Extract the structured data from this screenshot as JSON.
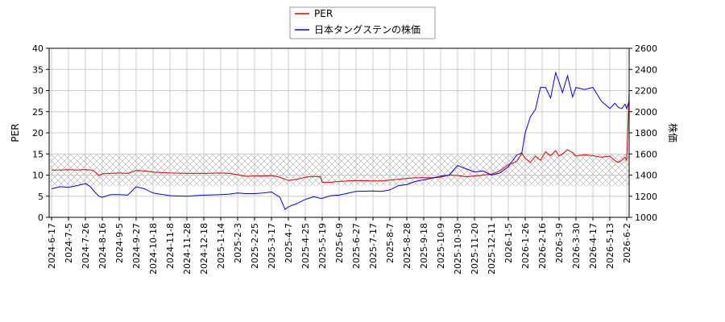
{
  "chart_data": {
    "type": "line",
    "title": "",
    "xlabel": "",
    "ylabel": "PER",
    "y2label": "株価",
    "ylim": [
      0,
      40
    ],
    "y2lim": [
      1000,
      2600
    ],
    "yticks": [
      0,
      5,
      10,
      15,
      20,
      25,
      30,
      35,
      40
    ],
    "y2ticks": [
      1000,
      1200,
      1400,
      1600,
      1800,
      2000,
      2200,
      2400,
      2600
    ],
    "grid": true,
    "legend_position": "top-center",
    "band": {
      "y_from": 7.5,
      "y_to": 15,
      "pattern": "crosshatch"
    },
    "x_ticks": [
      "2024-6-17",
      "2024-7-5",
      "2024-7-26",
      "2024-8-16",
      "2024-9-5",
      "2024-9-27",
      "2024-10-18",
      "2024-11-8",
      "2024-11-28",
      "2024-12-18",
      "2025-1-14",
      "2025-2-3",
      "2025-2-25",
      "2025-3-17",
      "2025-4-7",
      "2025-4-25",
      "2025-5-19",
      "2025-6-9",
      "2025-6-27",
      "2025-7-17",
      "2025-8-7",
      "2025-8-28",
      "2025-9-18",
      "2025-10-9",
      "2025-10-30",
      "2025-11-20",
      "2025-12-11",
      "2026-1-5",
      "2026-1-26",
      "2026-2-16",
      "2026-3-9",
      "2026-3-30",
      "2026-4-17",
      "2026-5-13",
      "2026-6-2"
    ],
    "series": [
      {
        "name": "PER",
        "color": "#dd0000",
        "axis": "left",
        "x": [
          0,
          0.5,
          1,
          1.5,
          2,
          2.3,
          2.5,
          2.8,
          3,
          3.5,
          4,
          4.5,
          5,
          5.5,
          6,
          7,
          8,
          9,
          10,
          10.5,
          11,
          11.5,
          12,
          12.5,
          13,
          13.5,
          13.8,
          14,
          14.5,
          15,
          15.5,
          15.9,
          16,
          16.5,
          17,
          18,
          19,
          19.5,
          20,
          20.5,
          21,
          21.5,
          22,
          22.5,
          23,
          23.5,
          24,
          24.5,
          25,
          25.5,
          26,
          26.5,
          27,
          27.5,
          27.8,
          28,
          28.3,
          28.6,
          28.9,
          29.2,
          29.5,
          29.8,
          30,
          30.2,
          30.5,
          30.8,
          31,
          31.5,
          32,
          32.5,
          33,
          33.3,
          33.5,
          33.7,
          33.9,
          34,
          34.2,
          34.3,
          34.5,
          34.7,
          35,
          35.2,
          35.5
        ],
        "y": [
          11.2,
          11.2,
          11.3,
          11.2,
          11.3,
          11.2,
          11.0,
          9.9,
          10.3,
          10.4,
          10.5,
          10.4,
          11.1,
          11.0,
          10.7,
          10.5,
          10.4,
          10.4,
          10.5,
          10.4,
          10.1,
          9.7,
          9.8,
          9.8,
          9.9,
          9.5,
          9.0,
          8.7,
          9.0,
          9.5,
          9.7,
          9.6,
          8.3,
          8.3,
          8.5,
          8.7,
          8.6,
          8.6,
          8.8,
          9.0,
          9.2,
          9.4,
          9.4,
          9.4,
          9.5,
          10.0,
          9.9,
          9.6,
          9.8,
          10.0,
          10.2,
          11.0,
          12.5,
          13.2,
          15.2,
          14.0,
          13.0,
          14.5,
          13.5,
          15.5,
          14.6,
          15.8,
          14.5,
          15.0,
          16.0,
          15.3,
          14.5,
          14.8,
          14.6,
          14.2,
          14.5,
          13.4,
          13.0,
          13.5,
          14.2,
          13.5,
          36.0,
          34.0,
          33.5,
          39.0,
          15.0,
          14.0,
          12.8
        ]
      },
      {
        "name": "日本タングステンの株価",
        "color": "#0000dd",
        "axis": "right",
        "x": [
          0,
          0.5,
          1,
          1.5,
          2,
          2.3,
          2.5,
          2.8,
          3,
          3.5,
          4,
          4.5,
          5,
          5.5,
          6,
          7,
          8,
          9,
          10,
          10.5,
          11,
          11.5,
          12,
          12.5,
          13,
          13.5,
          13.8,
          14,
          14.5,
          15,
          15.5,
          15.9,
          16,
          16.5,
          17,
          18,
          19,
          19.5,
          20,
          20.5,
          21,
          21.5,
          22,
          22.5,
          23,
          23.5,
          24,
          24.5,
          25,
          25.5,
          26,
          26.5,
          27,
          27.5,
          27.8,
          28,
          28.3,
          28.6,
          28.9,
          29.2,
          29.5,
          29.8,
          30,
          30.2,
          30.5,
          30.8,
          31,
          31.5,
          32,
          32.5,
          33,
          33.3,
          33.5,
          33.7,
          33.9,
          34,
          34.2,
          34.3,
          34.5,
          34.7,
          35,
          35.2,
          35.5
        ],
        "y": [
          1270,
          1290,
          1285,
          1300,
          1320,
          1290,
          1250,
          1200,
          1190,
          1215,
          1215,
          1210,
          1290,
          1270,
          1230,
          1205,
          1200,
          1210,
          1215,
          1220,
          1230,
          1225,
          1225,
          1230,
          1240,
          1190,
          1075,
          1100,
          1130,
          1170,
          1195,
          1180,
          1180,
          1205,
          1210,
          1245,
          1250,
          1245,
          1260,
          1300,
          1310,
          1340,
          1355,
          1370,
          1390,
          1400,
          1490,
          1460,
          1430,
          1440,
          1400,
          1420,
          1480,
          1590,
          1610,
          1800,
          1950,
          2020,
          2230,
          2230,
          2130,
          2370,
          2280,
          2180,
          2340,
          2140,
          2230,
          2210,
          2230,
          2100,
          2030,
          2080,
          2040,
          2030,
          2070,
          2030,
          2130,
          2300,
          2270,
          2250,
          2100,
          2050,
          2060
        ]
      }
    ]
  }
}
